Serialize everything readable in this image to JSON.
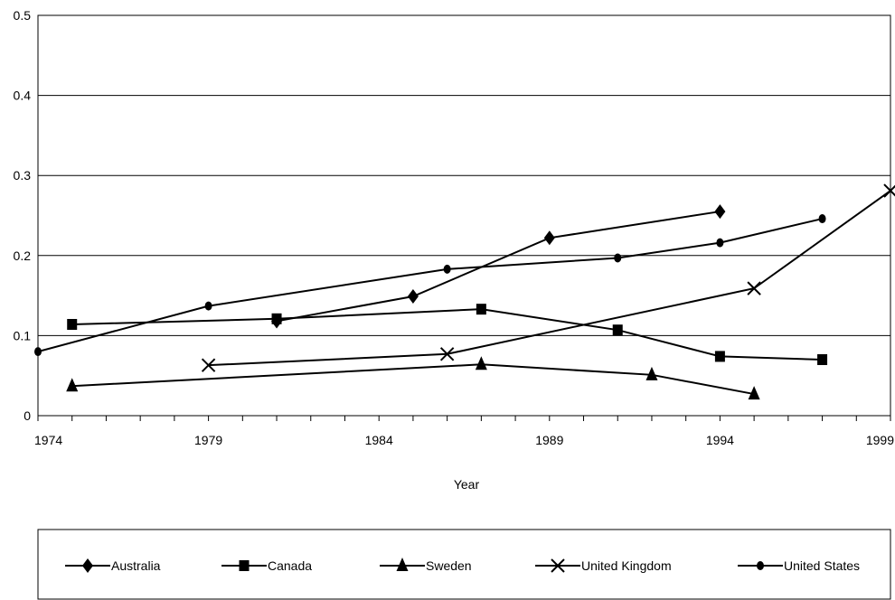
{
  "chart_data": {
    "type": "line",
    "title": "",
    "xlabel": "Year",
    "ylabel": "",
    "xlim": [
      1974,
      1999
    ],
    "ylim": [
      0,
      0.5
    ],
    "x_ticks": [
      1974,
      1979,
      1984,
      1989,
      1994,
      1999
    ],
    "x_tick_labels": [
      "1974",
      "1979",
      "1984",
      "1989",
      "1994",
      "1999"
    ],
    "y_ticks": [
      0,
      0.1,
      0.2,
      0.3,
      0.4,
      0.5
    ],
    "y_tick_labels": [
      "0",
      "0.1",
      "0.2",
      "0.3",
      "0.4",
      "0.5"
    ],
    "grid": "horizontal",
    "legend_position": "bottom",
    "series": [
      {
        "name": "Australia",
        "marker": "diamond",
        "points": [
          [
            1981,
            0.118
          ],
          [
            1985,
            0.149
          ],
          [
            1989,
            0.222
          ],
          [
            1994,
            0.255
          ]
        ]
      },
      {
        "name": "Canada",
        "marker": "square",
        "points": [
          [
            1975,
            0.114
          ],
          [
            1981,
            0.121
          ],
          [
            1987,
            0.133
          ],
          [
            1991,
            0.107
          ],
          [
            1994,
            0.074
          ],
          [
            1997,
            0.07
          ]
        ]
      },
      {
        "name": "Sweden",
        "marker": "triangle",
        "points": [
          [
            1975,
            0.037
          ],
          [
            1987,
            0.064
          ],
          [
            1992,
            0.051
          ],
          [
            1995,
            0.027
          ]
        ]
      },
      {
        "name": "United Kingdom",
        "marker": "x",
        "points": [
          [
            1979,
            0.063
          ],
          [
            1986,
            0.077
          ],
          [
            1995,
            0.159
          ],
          [
            1999,
            0.281
          ]
        ]
      },
      {
        "name": "United States",
        "marker": "dot",
        "points": [
          [
            1974,
            0.08
          ],
          [
            1979,
            0.137
          ],
          [
            1986,
            0.183
          ],
          [
            1991,
            0.197
          ],
          [
            1994,
            0.216
          ],
          [
            1997,
            0.246
          ]
        ]
      }
    ]
  }
}
